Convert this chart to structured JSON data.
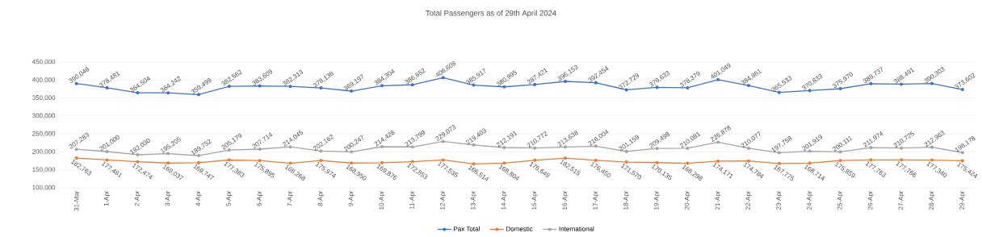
{
  "chart_data": {
    "type": "line",
    "title": "Total Passengers as of 29th April 2024",
    "categories": [
      "31-Mar",
      "1-Apr",
      "2-Apr",
      "3-Apr",
      "4-Apr",
      "5-Apr",
      "6-Apr",
      "7-Apr",
      "8-Apr",
      "9-Apr",
      "10-Apr",
      "11-Apr",
      "12-Apr",
      "13-Apr",
      "14-Apr",
      "15-Apr",
      "16-Apr",
      "17-Apr",
      "18-Apr",
      "19-Apr",
      "20-Apr",
      "21-Apr",
      "22-Apr",
      "23-Apr",
      "24-Apr",
      "25-Apr",
      "26-Apr",
      "27-Apr",
      "28-Apr",
      "29-Apr"
    ],
    "series": [
      {
        "name": "Pax Total",
        "color": "#4472c4",
        "values": [
          390046,
          378481,
          364504,
          364242,
          359499,
          382562,
          383609,
          382313,
          378136,
          369197,
          384304,
          386652,
          406608,
          385917,
          380995,
          387421,
          396153,
          392454,
          372729,
          379633,
          378379,
          401049,
          384861,
          365533,
          370633,
          375970,
          389737,
          388491,
          390303,
          373602
        ],
        "value_labels": [
          "390,046",
          "378,481",
          "364,504",
          "364,242",
          "359,499",
          "382,562",
          "383,609",
          "382,313",
          "378,136",
          "369,197",
          "384,304",
          "386,652",
          "406,608",
          "385,917",
          "380,995",
          "387,421",
          "396,153",
          "392,454",
          "372,729",
          "379,633",
          "378,379",
          "401,049",
          "384,861",
          "365,533",
          "370,633",
          "375,970",
          "389,737",
          "388,491",
          "390,303",
          "373,602"
        ]
      },
      {
        "name": "Domestic",
        "color": "#ed7d31",
        "values": [
          182763,
          177481,
          172474,
          169037,
          169747,
          177383,
          175895,
          168268,
          175974,
          168950,
          169876,
          172853,
          177535,
          166514,
          168804,
          176649,
          182515,
          176450,
          171570,
          170135,
          168298,
          174171,
          174784,
          167775,
          168714,
          175859,
          177763,
          177766,
          177340,
          175424
        ],
        "value_labels": [
          "182,763",
          "177,481",
          "172,474",
          "169,037",
          "169,747",
          "177,383",
          "175,895",
          "168,268",
          "175,974",
          "168,950",
          "169,876",
          "172,853",
          "177,535",
          "166,514",
          "168,804",
          "176,649",
          "182,515",
          "176,450",
          "171,570",
          "170,135",
          "168,298",
          "174,171",
          "174,784",
          "167,775",
          "168,714",
          "175,859",
          "177,763",
          "177,766",
          "177,340",
          "175,424"
        ]
      },
      {
        "name": "International",
        "color": "#a5a5a5",
        "values": [
          207283,
          201000,
          192030,
          195205,
          189752,
          205179,
          207714,
          214045,
          202162,
          200247,
          214428,
          213799,
          229073,
          219403,
          212191,
          210772,
          213638,
          216004,
          201159,
          209498,
          210081,
          226878,
          210077,
          197758,
          201919,
          200111,
          211974,
          210725,
          212963,
          198178
        ],
        "value_labels": [
          "207,283",
          "201,000",
          "192,030",
          "195,205",
          "189,752",
          "205,179",
          "207,714",
          "214,045",
          "202,162",
          "200,247",
          "214,428",
          "213,799",
          "229,073",
          "219,403",
          "212,191",
          "210,772",
          "213,638",
          "216,004",
          "201,159",
          "209,498",
          "210,081",
          "226,878",
          "210,077",
          "197,758",
          "201,919",
          "200,111",
          "211,974",
          "210,725",
          "212,963",
          "198,178"
        ]
      }
    ],
    "ylim": [
      100000,
      450000
    ],
    "yticks": [
      {
        "value": 100000,
        "label": "100,000"
      },
      {
        "value": 150000,
        "label": "150,000"
      },
      {
        "value": 200000,
        "label": "200,000"
      },
      {
        "value": 250000,
        "label": "250,000"
      },
      {
        "value": 300000,
        "label": "300,000"
      },
      {
        "value": 350000,
        "label": "350,000"
      },
      {
        "value": 400000,
        "label": "400,000"
      },
      {
        "value": 450000,
        "label": "450,000"
      }
    ],
    "grid": "y",
    "legend": "bottom",
    "marker": "circle",
    "line_style": "solid"
  }
}
